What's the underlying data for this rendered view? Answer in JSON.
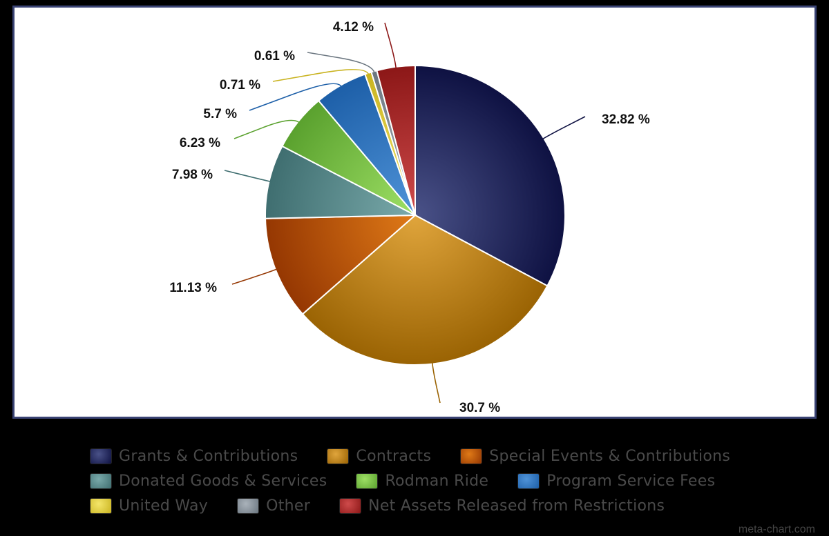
{
  "chart_data": {
    "type": "pie",
    "slices": [
      {
        "name": "Grants & Contributions",
        "value": 32.82,
        "label": "32.82 %",
        "color_light": "#4a5288",
        "color_dark": "#0e1142"
      },
      {
        "name": "Contracts",
        "value": 30.7,
        "label": "30.7 %",
        "color_light": "#e0a53c",
        "color_dark": "#9a6303"
      },
      {
        "name": "Special Events & Contributions",
        "value": 11.13,
        "label": "11.13 %",
        "color_light": "#e07a17",
        "color_dark": "#953702"
      },
      {
        "name": "Donated Goods & Services",
        "value": 7.98,
        "label": "7.98 %",
        "color_light": "#7aaaab",
        "color_dark": "#3f6e70"
      },
      {
        "name": "Rodman Ride",
        "value": 6.23,
        "label": "6.23 %",
        "color_light": "#9ee065",
        "color_dark": "#5aa12e"
      },
      {
        "name": "Program Service Fees",
        "value": 5.7,
        "label": "5.7 %",
        "color_light": "#4f93d8",
        "color_dark": "#1d5fa8"
      },
      {
        "name": "United Way",
        "value": 0.71,
        "label": "0.71 %",
        "color_light": "#f4e66a",
        "color_dark": "#c9b320"
      },
      {
        "name": "Other",
        "value": 0.61,
        "label": "0.61 %",
        "color_light": "#aab2ba",
        "color_dark": "#6b7680"
      },
      {
        "name": "Net Assets Released from Restrictions",
        "value": 4.12,
        "label": "4.12 %",
        "color_light": "#cf4b4b",
        "color_dark": "#8c1717"
      }
    ],
    "legend_placement": "bottom"
  },
  "watermark": "meta-chart.com"
}
